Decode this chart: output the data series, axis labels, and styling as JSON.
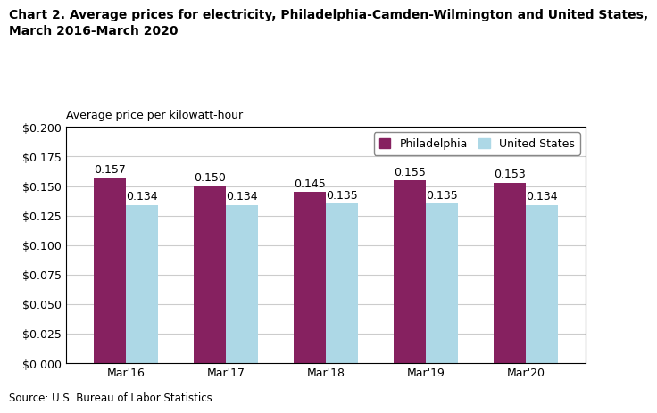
{
  "title": "Chart 2. Average prices for electricity, Philadelphia-Camden-Wilmington and United States,\nMarch 2016-March 2020",
  "ylabel": "Average price per kilowatt-hour",
  "source": "Source: U.S. Bureau of Labor Statistics.",
  "categories": [
    "Mar'16",
    "Mar'17",
    "Mar'18",
    "Mar'19",
    "Mar'20"
  ],
  "philadelphia": [
    0.157,
    0.15,
    0.145,
    0.155,
    0.153
  ],
  "us": [
    0.134,
    0.134,
    0.135,
    0.135,
    0.134
  ],
  "philly_color": "#862160",
  "us_color": "#ADD8E6",
  "ylim": [
    0,
    0.2
  ],
  "yticks": [
    0.0,
    0.025,
    0.05,
    0.075,
    0.1,
    0.125,
    0.15,
    0.175,
    0.2
  ],
  "ytick_labels": [
    "$0.000",
    "$0.025",
    "$0.050",
    "$0.075",
    "$0.100",
    "$0.125",
    "$0.150",
    "$0.175",
    "$0.200"
  ],
  "legend_labels": [
    "Philadelphia",
    "United States"
  ],
  "bar_width": 0.32,
  "title_fontsize": 10,
  "label_fontsize": 9,
  "tick_fontsize": 9,
  "annotation_fontsize": 9,
  "source_fontsize": 8.5
}
